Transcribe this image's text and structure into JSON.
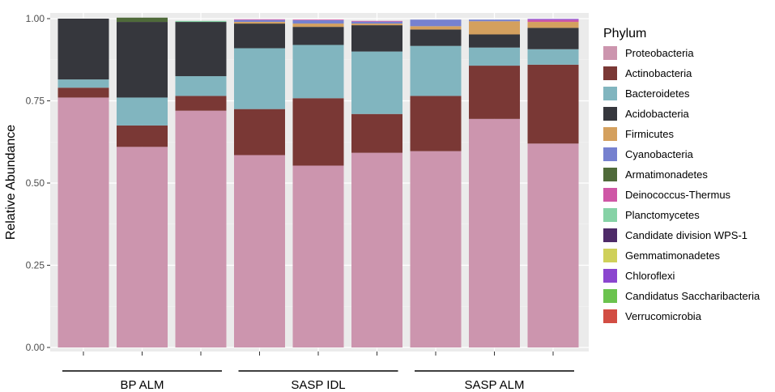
{
  "chart_data": {
    "type": "stacked_bar",
    "title": "",
    "xlabel": "",
    "ylabel": "Relative Abundance",
    "ylim": [
      0,
      1.0
    ],
    "y_ticks": [
      "0.00",
      "0.25",
      "0.50",
      "0.75",
      "1.00"
    ],
    "y_tick_values": [
      0,
      0.25,
      0.5,
      0.75,
      1.0
    ],
    "grid": true,
    "legend_title": "Phylum",
    "legend_position": "right",
    "groups": [
      {
        "label": "BP ALM",
        "bars": [
          0,
          1,
          2
        ]
      },
      {
        "label": "SASP IDL",
        "bars": [
          3,
          4,
          5
        ]
      },
      {
        "label": "SASP ALM",
        "bars": [
          6,
          7,
          8
        ]
      }
    ],
    "series": [
      {
        "name": "Proteobacteria",
        "color": "#cc95ae",
        "values": [
          0.76,
          0.61,
          0.72,
          0.585,
          0.553,
          0.592,
          0.597,
          0.695,
          0.62
        ]
      },
      {
        "name": "Actinobacteria",
        "color": "#7a3835",
        "values": [
          0.03,
          0.065,
          0.045,
          0.14,
          0.205,
          0.118,
          0.168,
          0.162,
          0.24
        ]
      },
      {
        "name": "Bacteroidetes",
        "color": "#81b5bf",
        "values": [
          0.025,
          0.085,
          0.06,
          0.185,
          0.162,
          0.19,
          0.152,
          0.055,
          0.047
        ]
      },
      {
        "name": "Acidobacteria",
        "color": "#36373d",
        "values": [
          0.185,
          0.23,
          0.165,
          0.075,
          0.055,
          0.08,
          0.05,
          0.04,
          0.065
        ]
      },
      {
        "name": "Firmicutes",
        "color": "#d4a05e",
        "values": [
          0,
          0,
          0,
          0.005,
          0.01,
          0.005,
          0.01,
          0.04,
          0.018
        ]
      },
      {
        "name": "Cyanobacteria",
        "color": "#7681cf",
        "values": [
          0,
          0,
          0,
          0.006,
          0.01,
          0.006,
          0.02,
          0.005,
          0
        ]
      },
      {
        "name": "Armatimonadetes",
        "color": "#4f6a3a",
        "values": [
          0,
          0.013,
          0,
          0,
          0,
          0,
          0,
          0,
          0
        ]
      },
      {
        "name": "Deinococcus-Thermus",
        "color": "#cf57a6",
        "values": [
          0,
          0,
          0,
          0.002,
          0.002,
          0.002,
          0,
          0,
          0.006
        ]
      },
      {
        "name": "Planctomycetes",
        "color": "#86d2a6",
        "values": [
          0,
          0,
          0.003,
          0,
          0,
          0,
          0,
          0,
          0
        ]
      },
      {
        "name": "Candidate division WPS-1",
        "color": "#4e2b68",
        "values": [
          0,
          0,
          0,
          0,
          0,
          0,
          0,
          0,
          0
        ]
      },
      {
        "name": "Gemmatimonadetes",
        "color": "#cfd05a",
        "values": [
          0,
          0,
          0,
          0,
          0,
          0,
          0,
          0,
          0
        ]
      },
      {
        "name": "Chloroflexi",
        "color": "#8b46cf",
        "values": [
          0,
          0,
          0,
          0,
          0,
          0,
          0,
          0,
          0.003
        ]
      },
      {
        "name": "Candidatus Saccharibacteria",
        "color": "#6bc34e",
        "values": [
          0,
          0,
          0,
          0,
          0,
          0,
          0,
          0,
          0
        ]
      },
      {
        "name": "Verrucomicrobia",
        "color": "#d24d43",
        "values": [
          0,
          0,
          0,
          0,
          0,
          0,
          0,
          0,
          0
        ]
      }
    ]
  }
}
